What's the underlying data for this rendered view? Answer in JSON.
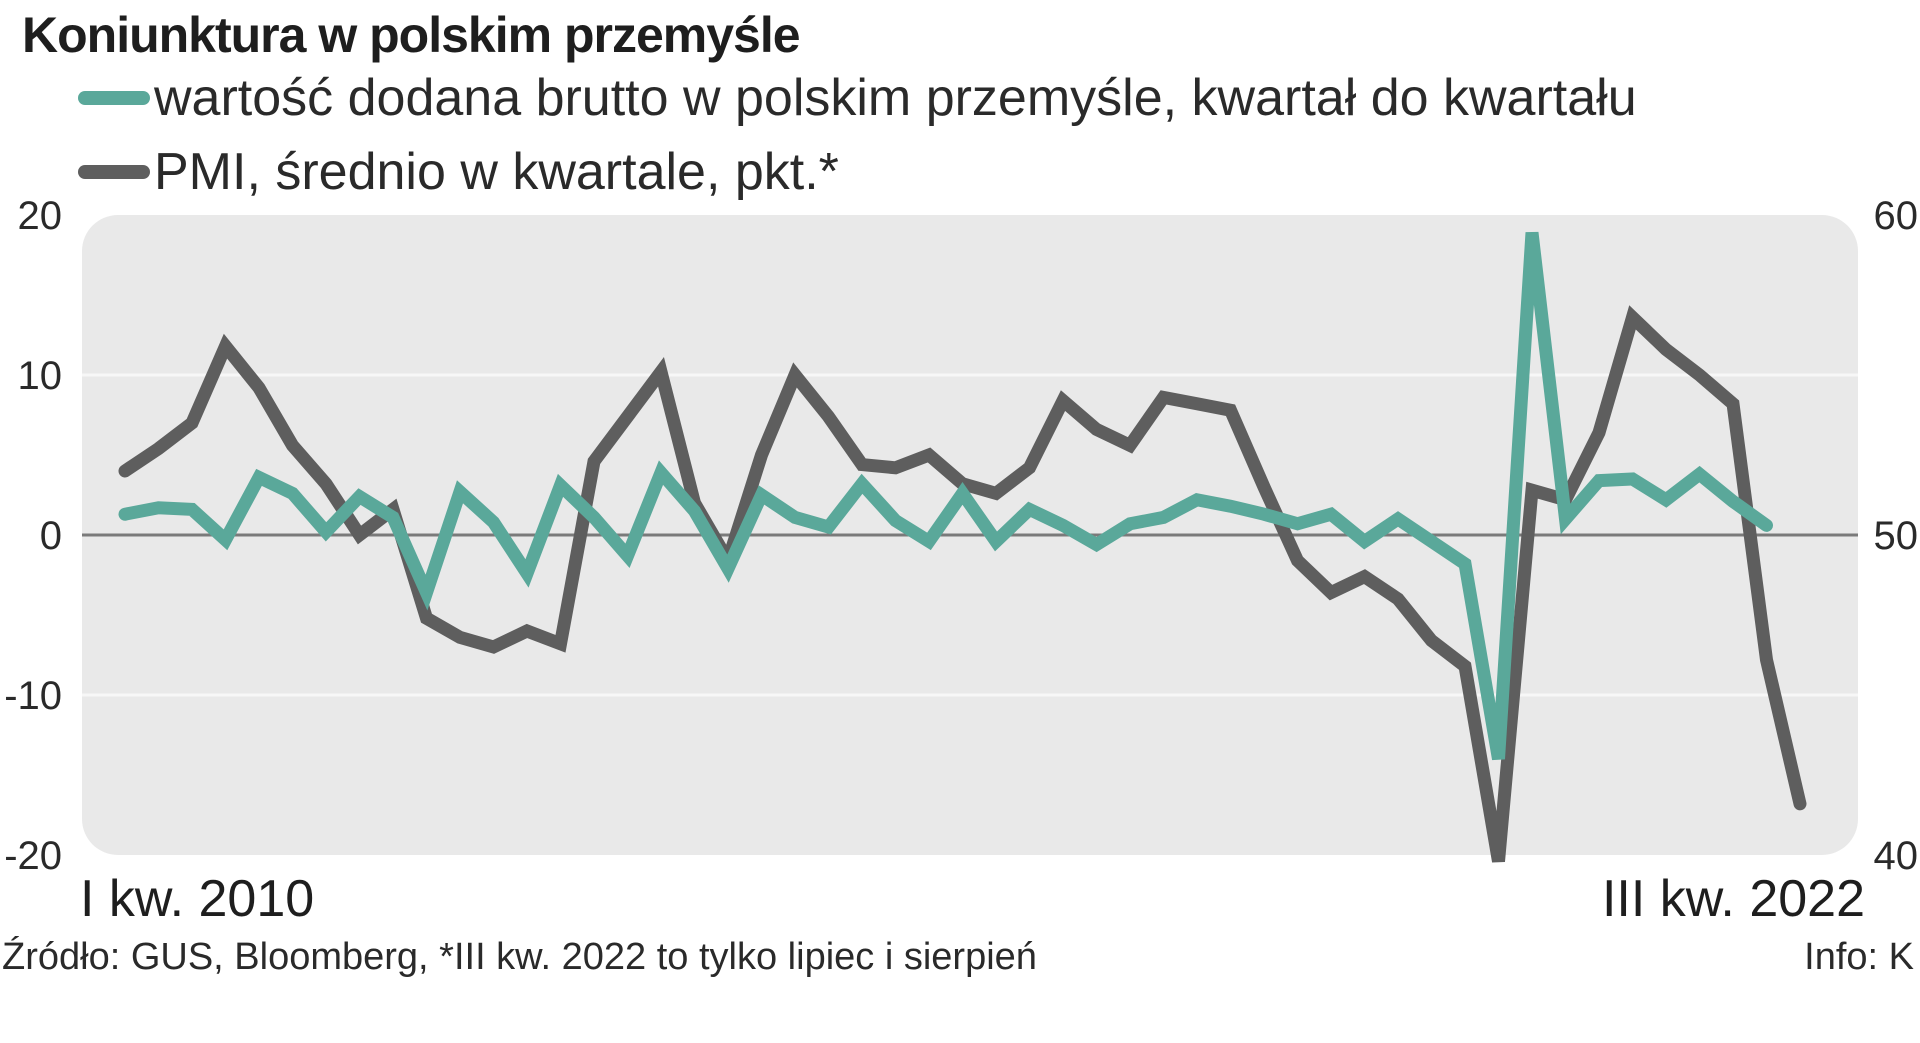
{
  "colors": {
    "vab": "#5aa89a",
    "pmi": "#5e5e5e",
    "panel": "#e9e9e9",
    "zero": "#7a7a7a",
    "grid": "#f7f7f7"
  },
  "chart_data": {
    "type": "line",
    "title": "Koniunktura w polskim przemyśle",
    "x_start_label": "I kw. 2010",
    "x_end_label": "III kw. 2022",
    "left_axis": {
      "ylim": [
        -20,
        20
      ],
      "ticks": [
        "20",
        "10",
        "0",
        "-10",
        "-20"
      ]
    },
    "right_axis": {
      "ylim": [
        40,
        60
      ],
      "ticks": [
        "60",
        "50",
        "40"
      ]
    },
    "grid": true,
    "legend_position": "top-left",
    "series": [
      {
        "name": "wartość dodana brutto w polskim przemyśle, kwartał do kwartału",
        "axis": "left",
        "values": [
          1.3,
          1.7,
          1.6,
          -0.3,
          3.6,
          2.6,
          0.2,
          2.4,
          1.1,
          -3.6,
          2.7,
          0.8,
          -2.4,
          3.1,
          1.1,
          -1.3,
          3.9,
          1.5,
          -2.1,
          2.5,
          1.1,
          0.5,
          3.2,
          0.9,
          -0.4,
          2.6,
          -0.4,
          1.6,
          0.6,
          -0.6,
          0.7,
          1.1,
          2.2,
          1.8,
          1.3,
          0.7,
          1.3,
          -0.4,
          1.0,
          -0.4,
          -1.8,
          -14.0,
          18.9,
          1.0,
          3.4,
          3.5,
          2.2,
          3.8,
          2.1,
          0.6
        ]
      },
      {
        "name": "PMI, średnio w kwartale, pkt.*",
        "axis": "right",
        "values": [
          52.0,
          52.7,
          53.5,
          55.9,
          54.6,
          52.8,
          51.6,
          50.0,
          50.8,
          47.4,
          46.8,
          46.5,
          47.0,
          46.6,
          52.3,
          53.7,
          55.1,
          51.0,
          49.2,
          52.5,
          55.0,
          53.7,
          52.2,
          52.1,
          52.5,
          51.6,
          51.3,
          52.1,
          54.2,
          53.3,
          52.8,
          54.3,
          54.1,
          53.9,
          51.5,
          49.2,
          48.2,
          48.7,
          48.0,
          46.7,
          45.9,
          39.8,
          51.4,
          51.1,
          53.2,
          56.8,
          55.8,
          55.0,
          54.1,
          46.1,
          41.6
        ]
      }
    ]
  },
  "footer": {
    "source": "Źródło: GUS, Bloomberg, *III kw. 2022 to tylko lipiec i sierpień",
    "info": "Info: K"
  }
}
